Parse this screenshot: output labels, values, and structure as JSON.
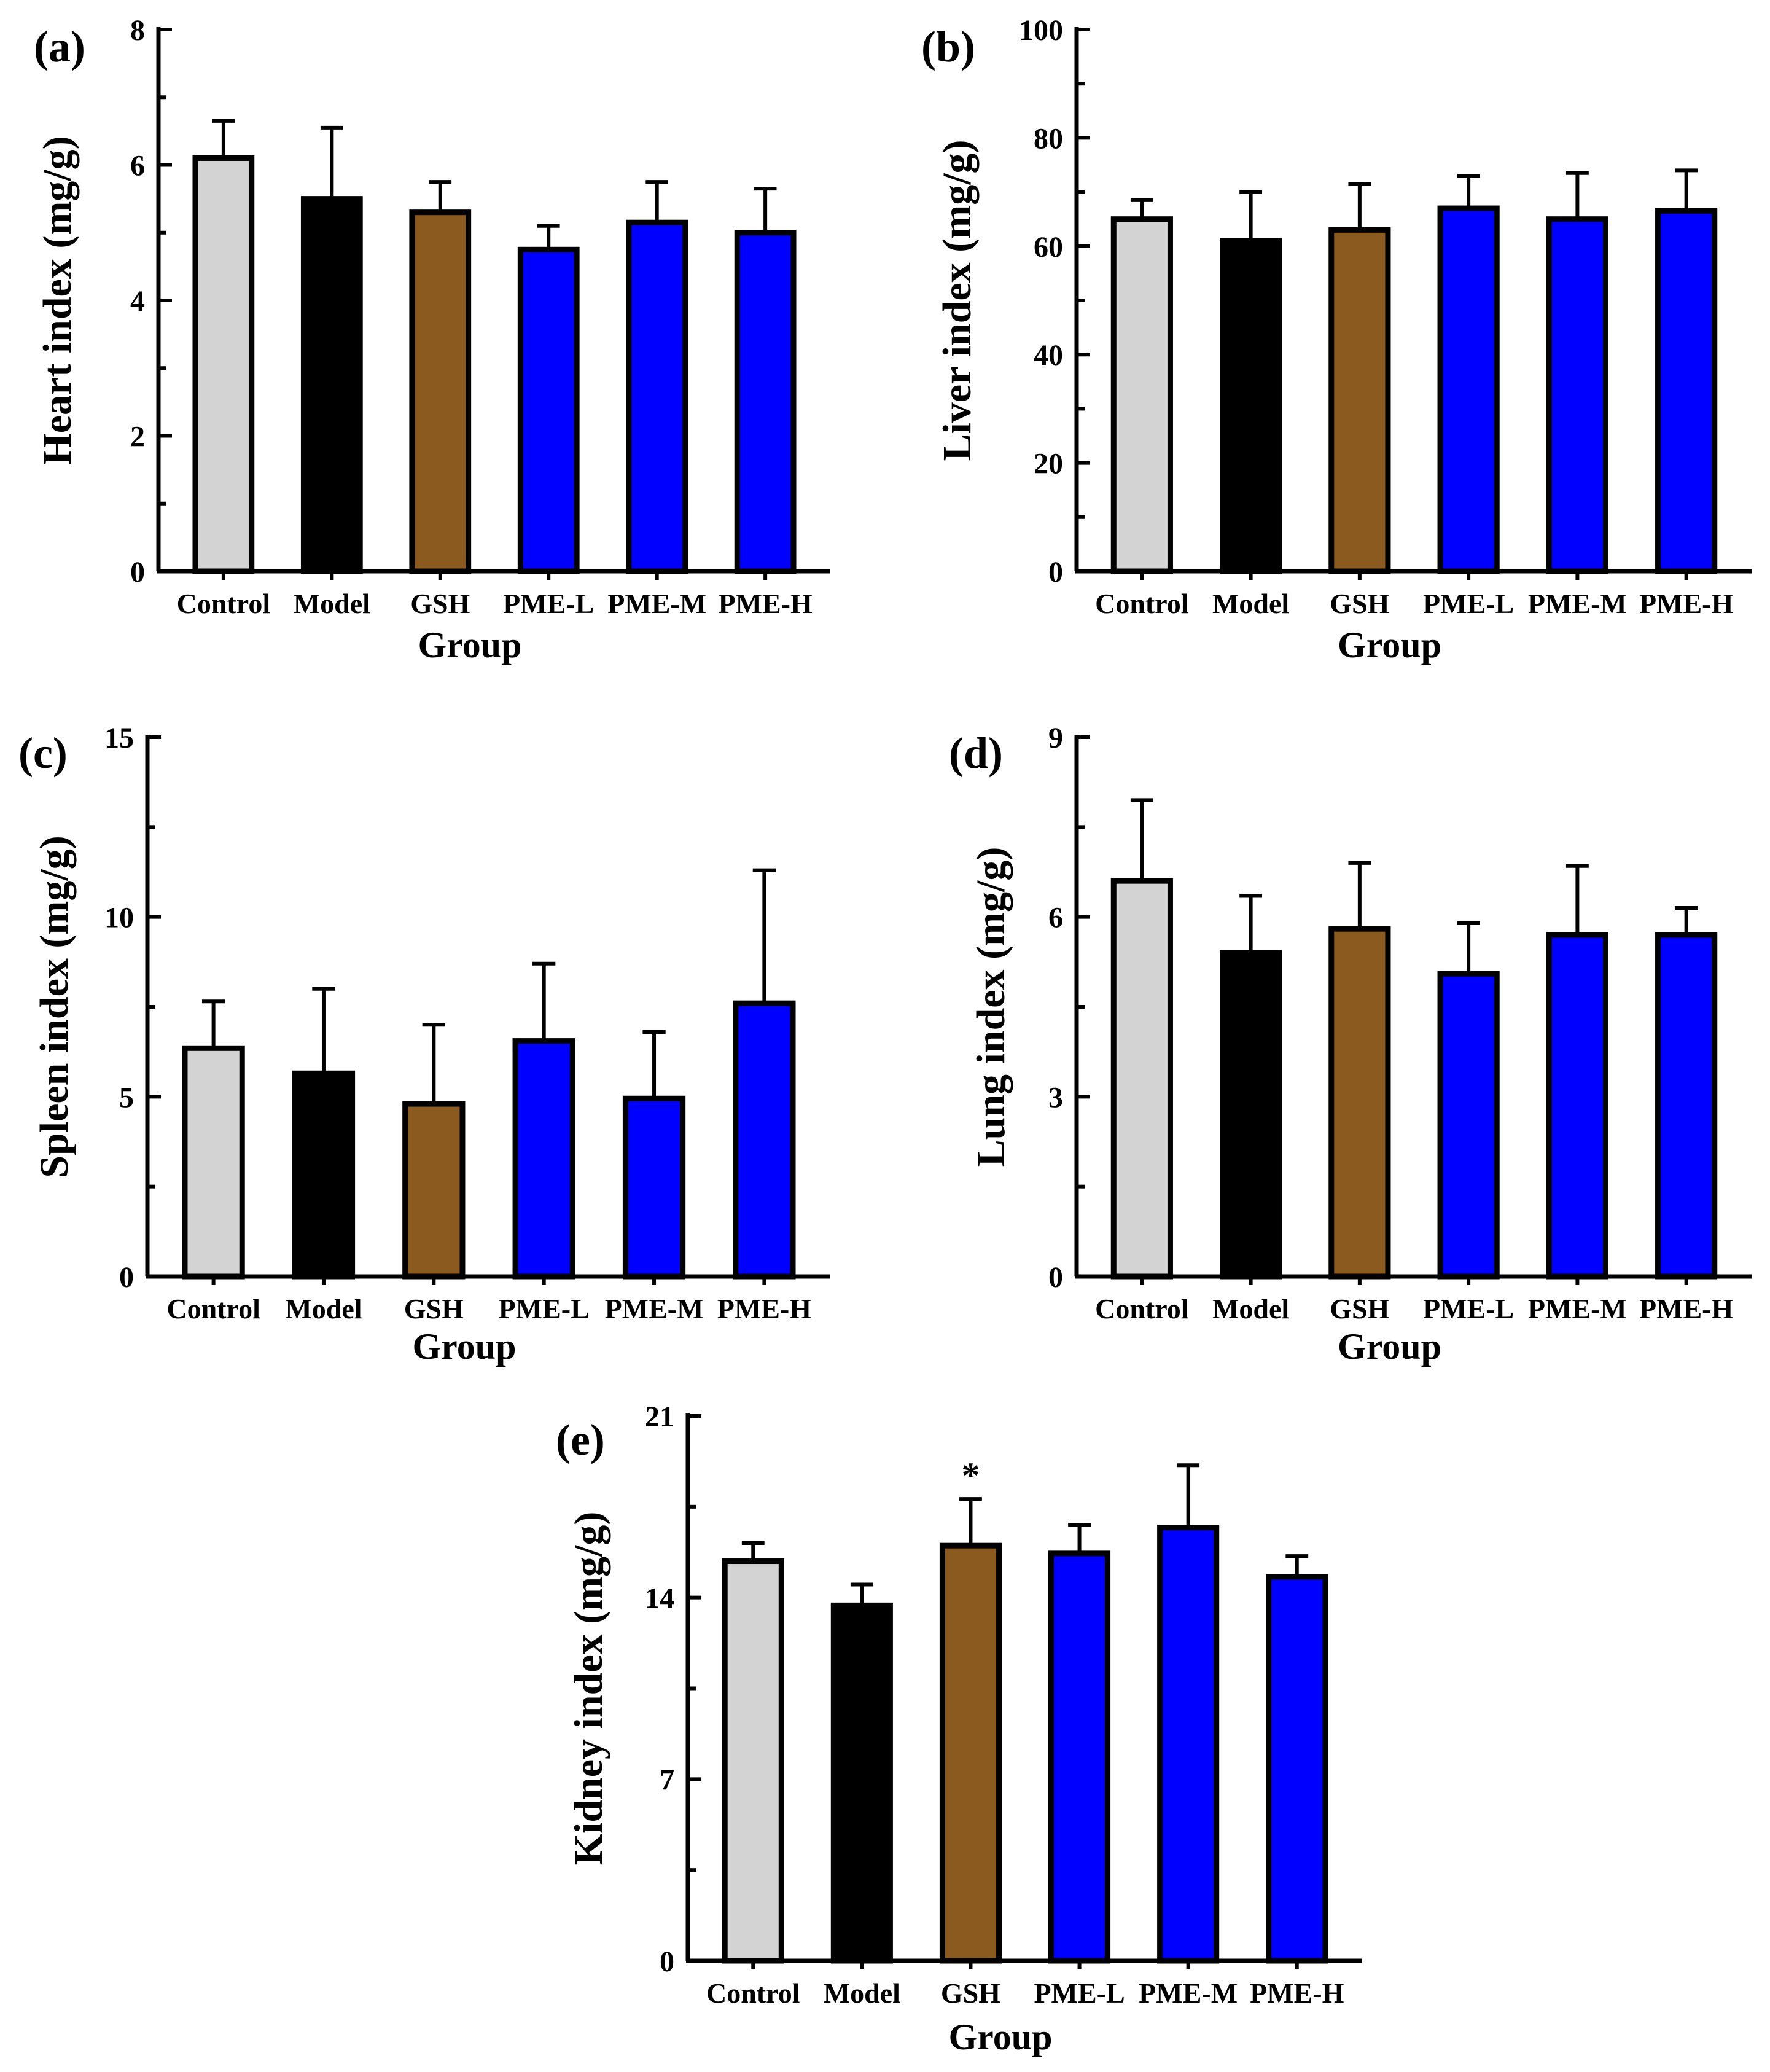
{
  "chart_data": [
    {
      "panel": "(a)",
      "type": "bar",
      "title": "",
      "xlabel": "Group",
      "ylabel": "Heart index (mg/g)",
      "ylim": [
        0,
        8
      ],
      "yticks": [
        0,
        2,
        4,
        6,
        8
      ],
      "categories": [
        "Control",
        "Model",
        "GSH",
        "PME-L",
        "PME-M",
        "PME-H"
      ],
      "values": [
        6.1,
        5.5,
        5.3,
        4.75,
        5.15,
        5.0
      ],
      "errors": [
        0.55,
        1.05,
        0.45,
        0.35,
        0.6,
        0.65
      ],
      "annotations": []
    },
    {
      "panel": "(b)",
      "type": "bar",
      "title": "",
      "xlabel": "Group",
      "ylabel": "Liver index (mg/g)",
      "ylim": [
        0,
        100
      ],
      "yticks": [
        0,
        20,
        40,
        60,
        80,
        100
      ],
      "categories": [
        "Control",
        "Model",
        "GSH",
        "PME-L",
        "PME-M",
        "PME-H"
      ],
      "values": [
        65,
        61,
        63,
        67,
        65,
        66.5
      ],
      "errors": [
        3.5,
        9,
        8.5,
        6,
        8.5,
        7.5
      ],
      "annotations": []
    },
    {
      "panel": "(c)",
      "type": "bar",
      "title": "",
      "xlabel": "Group",
      "ylabel": "Spleen index (mg/g)",
      "ylim": [
        0,
        15
      ],
      "yticks": [
        0,
        5,
        10,
        15
      ],
      "categories": [
        "Control",
        "Model",
        "GSH",
        "PME-L",
        "PME-M",
        "PME-H"
      ],
      "values": [
        6.35,
        5.65,
        4.8,
        6.55,
        4.95,
        7.6
      ],
      "errors": [
        1.3,
        2.35,
        2.2,
        2.15,
        1.85,
        3.7
      ],
      "annotations": []
    },
    {
      "panel": "(d)",
      "type": "bar",
      "title": "",
      "xlabel": "Group",
      "ylabel": "Lung index (mg/g)",
      "ylim": [
        0,
        9
      ],
      "yticks": [
        0,
        3,
        6,
        9
      ],
      "categories": [
        "Control",
        "Model",
        "GSH",
        "PME-L",
        "PME-M",
        "PME-H"
      ],
      "values": [
        6.6,
        5.4,
        5.8,
        5.05,
        5.7,
        5.7
      ],
      "errors": [
        1.35,
        0.95,
        1.1,
        0.85,
        1.15,
        0.45
      ],
      "annotations": []
    },
    {
      "panel": "(e)",
      "type": "bar",
      "title": "",
      "xlabel": "Group",
      "ylabel": "Kidney index (mg/g)",
      "ylim": [
        0,
        21
      ],
      "yticks": [
        0,
        7,
        14,
        21
      ],
      "categories": [
        "Control",
        "Model",
        "GSH",
        "PME-L",
        "PME-M",
        "PME-H"
      ],
      "values": [
        15.4,
        13.7,
        16.0,
        15.7,
        16.7,
        14.8
      ],
      "errors": [
        0.7,
        0.8,
        1.8,
        1.1,
        2.4,
        0.8
      ],
      "annotations": [
        {
          "category": "GSH",
          "text": "*"
        }
      ]
    }
  ],
  "colors": {
    "Control": "#d3d3d3",
    "Model": "#000000",
    "GSH": "#8b5a1e",
    "PME-L": "#0000ff",
    "PME-M": "#0000ff",
    "PME-H": "#0000ff"
  }
}
